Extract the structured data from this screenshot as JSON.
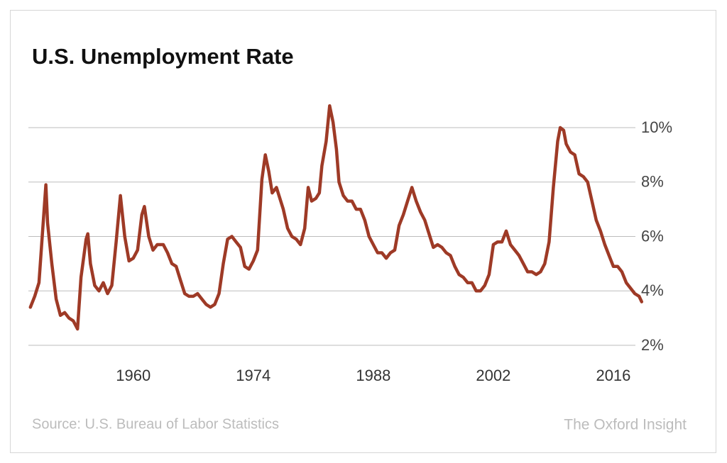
{
  "chart_data": {
    "type": "line",
    "title": "U.S. Unemployment Rate",
    "source": "Source: U.S. Bureau of Labor Statistics",
    "brand": "The Oxford Insight",
    "color": "#9e3a26",
    "grid": true,
    "xlim": [
      1947.6,
      2019.4
    ],
    "xticks": [
      1960,
      1974,
      1988,
      2002,
      2016
    ],
    "ylim": [
      2,
      10
    ],
    "yticks": [
      {
        "value": 2,
        "label": "2%"
      },
      {
        "value": 4,
        "label": "4%"
      },
      {
        "value": 6,
        "label": "6%"
      },
      {
        "value": 8,
        "label": "8%"
      },
      {
        "value": 10,
        "label": "10%"
      }
    ],
    "x": [
      1948,
      1948.5,
      1949,
      1949.8,
      1950,
      1950.5,
      1951,
      1951.5,
      1952,
      1952.5,
      1953,
      1953.5,
      1953.9,
      1954.5,
      1954.7,
      1955,
      1955.5,
      1956,
      1956.5,
      1957,
      1957.5,
      1958,
      1958.5,
      1959,
      1959.5,
      1960,
      1960.5,
      1961,
      1961.3,
      1961.8,
      1962.3,
      1962.8,
      1963.5,
      1964,
      1964.5,
      1965,
      1965.5,
      1966,
      1966.5,
      1967,
      1967.5,
      1968,
      1968.5,
      1969,
      1969.5,
      1970,
      1970.5,
      1971,
      1971.5,
      1972,
      1972.5,
      1973,
      1973.5,
      1974,
      1974.5,
      1975,
      1975.4,
      1975.8,
      1976.2,
      1976.7,
      1977,
      1977.5,
      1978,
      1978.5,
      1979,
      1979.5,
      1980,
      1980.4,
      1980.8,
      1981.3,
      1981.7,
      1982,
      1982.5,
      1982.9,
      1983.3,
      1983.7,
      1984,
      1984.5,
      1985,
      1985.5,
      1986,
      1986.5,
      1987,
      1987.5,
      1988,
      1988.5,
      1989,
      1989.5,
      1990,
      1990.5,
      1991,
      1991.5,
      1992,
      1992.5,
      1993,
      1993.5,
      1994,
      1994.5,
      1995,
      1995.5,
      1996,
      1996.5,
      1997,
      1997.5,
      1998,
      1998.5,
      1999,
      1999.5,
      2000,
      2000.5,
      2001,
      2001.5,
      2002,
      2002.5,
      2003,
      2003.5,
      2004,
      2004.5,
      2005,
      2005.5,
      2006,
      2006.5,
      2007,
      2007.5,
      2008,
      2008.5,
      2009,
      2009.5,
      2009.8,
      2010.2,
      2010.5,
      2011,
      2011.5,
      2012,
      2012.5,
      2013,
      2013.5,
      2014,
      2014.5,
      2015,
      2015.5,
      2016,
      2016.5,
      2017,
      2017.5,
      2018,
      2018.5,
      2019,
      2019.3
    ],
    "values": [
      3.4,
      3.8,
      4.3,
      7.9,
      6.5,
      5,
      3.7,
      3.1,
      3.2,
      3,
      2.9,
      2.6,
      4.5,
      5.9,
      6.1,
      5,
      4.2,
      4,
      4.3,
      3.9,
      4.2,
      5.8,
      7.5,
      6,
      5.1,
      5.2,
      5.5,
      6.8,
      7.1,
      6,
      5.5,
      5.7,
      5.7,
      5.4,
      5,
      4.9,
      4.4,
      3.9,
      3.8,
      3.8,
      3.9,
      3.7,
      3.5,
      3.4,
      3.5,
      3.9,
      5,
      5.9,
      6,
      5.8,
      5.6,
      4.9,
      4.8,
      5.1,
      5.5,
      8.1,
      9,
      8.4,
      7.6,
      7.8,
      7.5,
      7,
      6.3,
      6,
      5.9,
      5.7,
      6.3,
      7.8,
      7.3,
      7.4,
      7.6,
      8.6,
      9.5,
      10.8,
      10.2,
      9.2,
      8,
      7.5,
      7.3,
      7.3,
      7,
      7,
      6.6,
      6,
      5.7,
      5.4,
      5.4,
      5.2,
      5.4,
      5.5,
      6.4,
      6.8,
      7.3,
      7.8,
      7.3,
      6.9,
      6.6,
      6.1,
      5.6,
      5.7,
      5.6,
      5.4,
      5.3,
      4.9,
      4.6,
      4.5,
      4.3,
      4.3,
      4,
      4,
      4.2,
      4.6,
      5.7,
      5.8,
      5.8,
      6.2,
      5.7,
      5.5,
      5.3,
      5,
      4.7,
      4.7,
      4.6,
      4.7,
      5,
      5.8,
      7.8,
      9.5,
      10,
      9.9,
      9.4,
      9.1,
      9,
      8.3,
      8.2,
      8,
      7.3,
      6.6,
      6.2,
      5.7,
      5.3,
      4.9,
      4.9,
      4.7,
      4.3,
      4.1,
      3.9,
      3.8,
      3.6
    ]
  }
}
